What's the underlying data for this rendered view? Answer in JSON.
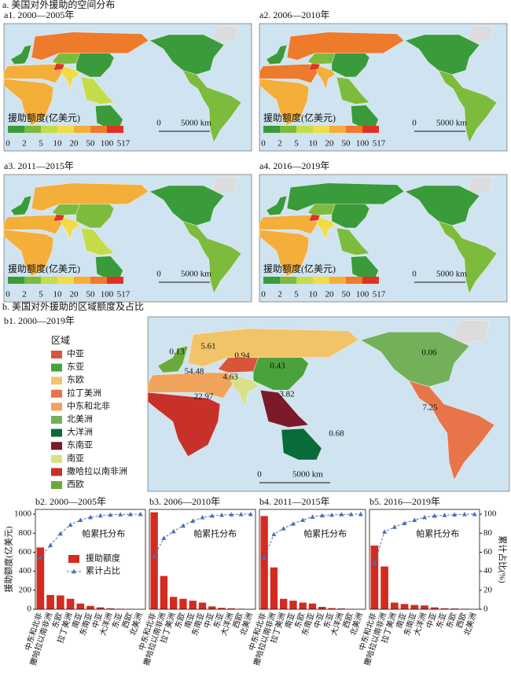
{
  "title_a": "a. 美国对外援助的空间分布",
  "maps": {
    "panels": [
      "a1. 2000—2005年",
      "a2. 2006—2010年",
      "a3. 2011—2015年",
      "a4. 2016—2019年"
    ],
    "legend_title": "援助额度(亿美元)",
    "legend_ticks": [
      0,
      2,
      5,
      10,
      20,
      50,
      100,
      517
    ],
    "legend_colors": [
      "#3a9b3a",
      "#7dbb3d",
      "#c4dc4a",
      "#f0dc48",
      "#f4ae3a",
      "#ee7a2c",
      "#e03224"
    ],
    "scale_bar": {
      "start": 0,
      "label": "5000 km"
    }
  },
  "title_b": "b. 美国对外援助的区域额度及占比",
  "region_map": {
    "title": "b1. 2000—2019年",
    "legend_title": "区域",
    "regions": [
      {
        "name": "中亚",
        "color": "#d9553a",
        "value": 0.94
      },
      {
        "name": "东亚",
        "color": "#4aa23a",
        "value": 0.43
      },
      {
        "name": "东欧",
        "color": "#f2c46a",
        "value": 5.61
      },
      {
        "name": "拉丁美洲",
        "color": "#e8744a",
        "value": 7.25
      },
      {
        "name": "中东和北非",
        "color": "#f0a35a",
        "value": 54.48
      },
      {
        "name": "北美洲",
        "color": "#73b05a",
        "value": 0.06
      },
      {
        "name": "大洋洲",
        "color": "#0a6b3a",
        "value": 0.68
      },
      {
        "name": "东南亚",
        "color": "#7a1a2a",
        "value": 3.82
      },
      {
        "name": "南亚",
        "color": "#d8e08a",
        "value": 4.63
      },
      {
        "name": "撒哈拉以南非洲",
        "color": "#c8302a",
        "value": 22.97
      },
      {
        "name": "西欧",
        "color": "#6aaa3a",
        "value": 0.13
      }
    ]
  },
  "chart_data": [
    {
      "type": "bar",
      "title": "b2. 2000—2005年",
      "annotation": "帕累托分布",
      "legend": "right",
      "ylabel": "援助额度(亿美元)",
      "ylim": [
        0,
        1050
      ],
      "yticks": [
        0,
        200,
        400,
        600,
        800,
        1000
      ],
      "y2lim": [
        0,
        105
      ],
      "categories": [
        "中东和北非",
        "撒哈拉以南非洲",
        "东欧",
        "拉丁美洲",
        "南亚",
        "东南亚",
        "中亚",
        "大洋洲",
        "东亚",
        "西欧",
        "北美洲"
      ],
      "series": [
        {
          "name": "援助额度",
          "color": "#d42a1f",
          "values": [
            650,
            150,
            145,
            110,
            60,
            35,
            20,
            10,
            5,
            3,
            1
          ]
        },
        {
          "name": "累计占比",
          "color": "#4a6fb5",
          "type": "line",
          "axis": "y2",
          "values": [
            54.7,
            67.3,
            79.5,
            88.8,
            93.8,
            96.8,
            98.5,
            99.3,
            99.7,
            99.9,
            100
          ]
        }
      ]
    },
    {
      "type": "bar",
      "title": "b3. 2006—2010年",
      "annotation": "帕累托分布",
      "ylim": [
        0,
        1050
      ],
      "y2lim": [
        0,
        105
      ],
      "categories": [
        "中东和北非",
        "撒哈拉以南非洲",
        "拉丁美洲",
        "东欧",
        "南亚",
        "东南亚",
        "中亚",
        "东亚",
        "大洋洲",
        "西欧",
        "北美洲"
      ],
      "series": [
        {
          "color": "#d42a1f",
          "values": [
            1020,
            350,
            130,
            110,
            90,
            70,
            30,
            15,
            10,
            5,
            2
          ]
        },
        {
          "color": "#4a6fb5",
          "type": "line",
          "axis": "y2",
          "values": [
            55.7,
            74.8,
            81.9,
            87.9,
            92.8,
            96.6,
            98.3,
            99.1,
            99.6,
            99.9,
            100
          ]
        }
      ]
    },
    {
      "type": "bar",
      "title": "b4. 2011—2015年",
      "annotation": "帕累托分布",
      "ylim": [
        0,
        1050
      ],
      "y2lim": [
        0,
        105
      ],
      "categories": [
        "中东和北非",
        "撒哈拉以南非洲",
        "拉丁美洲",
        "南亚",
        "东欧",
        "东南亚",
        "中亚",
        "东亚",
        "大洋洲",
        "西欧",
        "北美洲"
      ],
      "series": [
        {
          "color": "#d42a1f",
          "values": [
            980,
            440,
            110,
            90,
            70,
            60,
            25,
            12,
            8,
            4,
            2
          ]
        },
        {
          "color": "#4a6fb5",
          "type": "line",
          "axis": "y2",
          "values": [
            54.4,
            78.8,
            85.0,
            89.9,
            93.8,
            97.2,
            98.6,
            99.2,
            99.7,
            99.9,
            100
          ]
        }
      ]
    },
    {
      "type": "bar",
      "title": "b5. 2016—2019年",
      "annotation": "帕累托分布",
      "ylim": [
        0,
        1050
      ],
      "y2label": "累计占比(%)",
      "y2lim": [
        0,
        105
      ],
      "y2ticks": [
        0,
        20,
        40,
        60,
        80,
        100
      ],
      "categories": [
        "中东和北非",
        "撒哈拉以南非洲",
        "拉丁美洲",
        "南亚",
        "东南亚",
        "大洋洲",
        "中亚",
        "东亚",
        "东欧",
        "西欧",
        "北美洲"
      ],
      "series": [
        {
          "color": "#d42a1f",
          "values": [
            670,
            450,
            70,
            55,
            45,
            40,
            20,
            10,
            8,
            5,
            2
          ]
        },
        {
          "color": "#4a6fb5",
          "type": "line",
          "axis": "y2",
          "values": [
            48.7,
            81.5,
            86.5,
            90.5,
            93.8,
            96.7,
            98.2,
            98.9,
            99.5,
            99.9,
            100
          ]
        }
      ]
    }
  ]
}
